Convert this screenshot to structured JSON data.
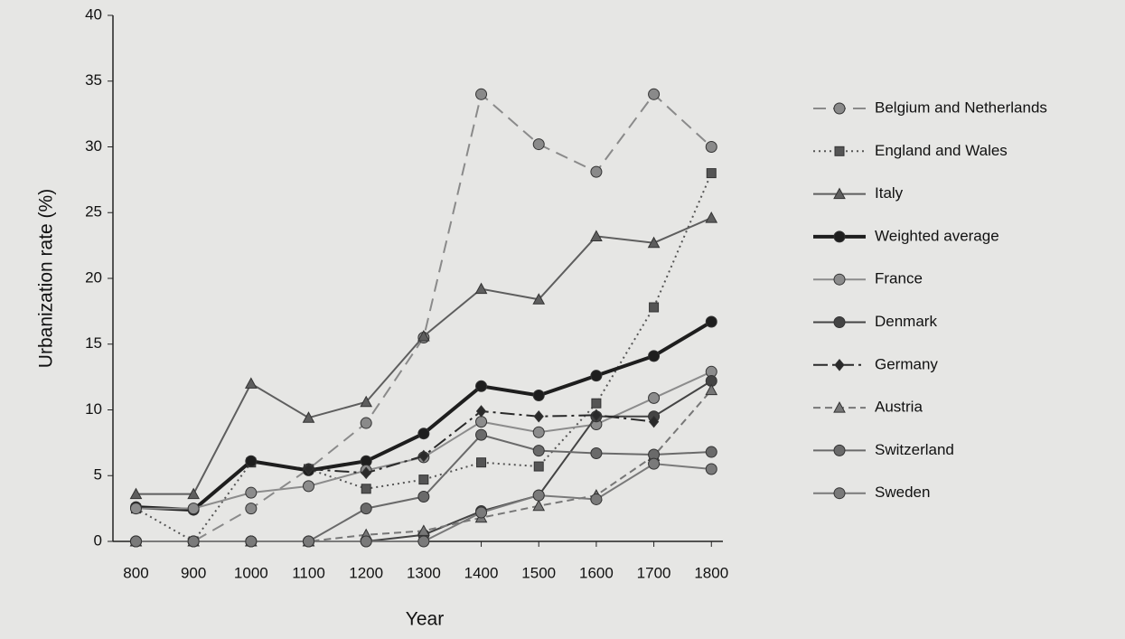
{
  "chart_data": {
    "type": "line",
    "x_label": "Year",
    "y_label": "Urbanization rate (%)",
    "x": [
      800,
      900,
      1000,
      1100,
      1200,
      1300,
      1400,
      1500,
      1600,
      1700,
      1800
    ],
    "xlim": [
      760,
      1820
    ],
    "xticks": [
      800,
      900,
      1000,
      1100,
      1200,
      1300,
      1400,
      1500,
      1600,
      1700,
      1800
    ],
    "ylim": [
      0,
      40
    ],
    "yticks": [
      0,
      5,
      10,
      15,
      20,
      25,
      30,
      35,
      40
    ],
    "grid": false,
    "legend": "right",
    "series": [
      {
        "name": "Belgium and Netherlands",
        "color": "#8a8a8a",
        "dash": "14,8",
        "marker": "circle",
        "width": 2,
        "values": [
          0,
          0,
          2.5,
          5.5,
          9,
          15.5,
          34,
          30.2,
          28.1,
          34,
          30
        ]
      },
      {
        "name": "England and Wales",
        "color": "#555555",
        "dash": "2,4",
        "marker": "square",
        "width": 2,
        "values": [
          2.5,
          0,
          6,
          5.5,
          4,
          4.7,
          6,
          5.7,
          10.5,
          17.8,
          28
        ]
      },
      {
        "name": "Italy",
        "color": "#5e5e5e",
        "dash": "",
        "marker": "triangle",
        "width": 2,
        "values": [
          3.6,
          3.6,
          12,
          9.4,
          10.6,
          15.6,
          19.2,
          18.4,
          23.2,
          22.7,
          24.6
        ]
      },
      {
        "name": "Weighted average",
        "color": "#1e1e1e",
        "dash": "",
        "marker": "circle",
        "width": 4,
        "values": [
          2.6,
          2.4,
          6.1,
          5.4,
          6.1,
          8.2,
          11.8,
          11.1,
          12.6,
          14.1,
          16.7
        ]
      },
      {
        "name": "France",
        "color": "#8c8c8c",
        "dash": "",
        "marker": "circle",
        "width": 2,
        "values": [
          2.5,
          2.5,
          3.7,
          4.2,
          5.4,
          6.4,
          9.1,
          8.3,
          8.9,
          10.9,
          12.9
        ]
      },
      {
        "name": "Denmark",
        "color": "#444444",
        "dash": "",
        "marker": "circle",
        "width": 2,
        "values": [
          0,
          0,
          0,
          0,
          0,
          0.5,
          2.3,
          3.5,
          9.5,
          9.5,
          12.2
        ]
      },
      {
        "name": "Germany",
        "color": "#2a2a2a",
        "dash": "16,5,3,5",
        "marker": "diamond",
        "width": 2,
        "values": [
          null,
          null,
          null,
          5.5,
          5.2,
          6.5,
          9.9,
          9.5,
          9.6,
          9.1,
          null
        ]
      },
      {
        "name": "Austria",
        "color": "#777777",
        "dash": "8,5",
        "marker": "triangle",
        "width": 2,
        "values": [
          0,
          0,
          0,
          0,
          0.5,
          0.8,
          1.8,
          2.7,
          3.5,
          6.5,
          11.5
        ]
      },
      {
        "name": "Switzerland",
        "color": "#6a6a6a",
        "dash": "",
        "marker": "circle",
        "width": 2,
        "values": [
          0,
          0,
          0,
          0,
          2.5,
          3.4,
          8.1,
          6.9,
          6.7,
          6.6,
          6.8
        ]
      },
      {
        "name": "Sweden",
        "color": "#7a7a7a",
        "dash": "",
        "marker": "circle",
        "width": 2,
        "values": [
          0,
          0,
          0,
          0,
          0,
          0,
          2.2,
          3.5,
          3.2,
          5.9,
          5.5
        ]
      }
    ]
  }
}
